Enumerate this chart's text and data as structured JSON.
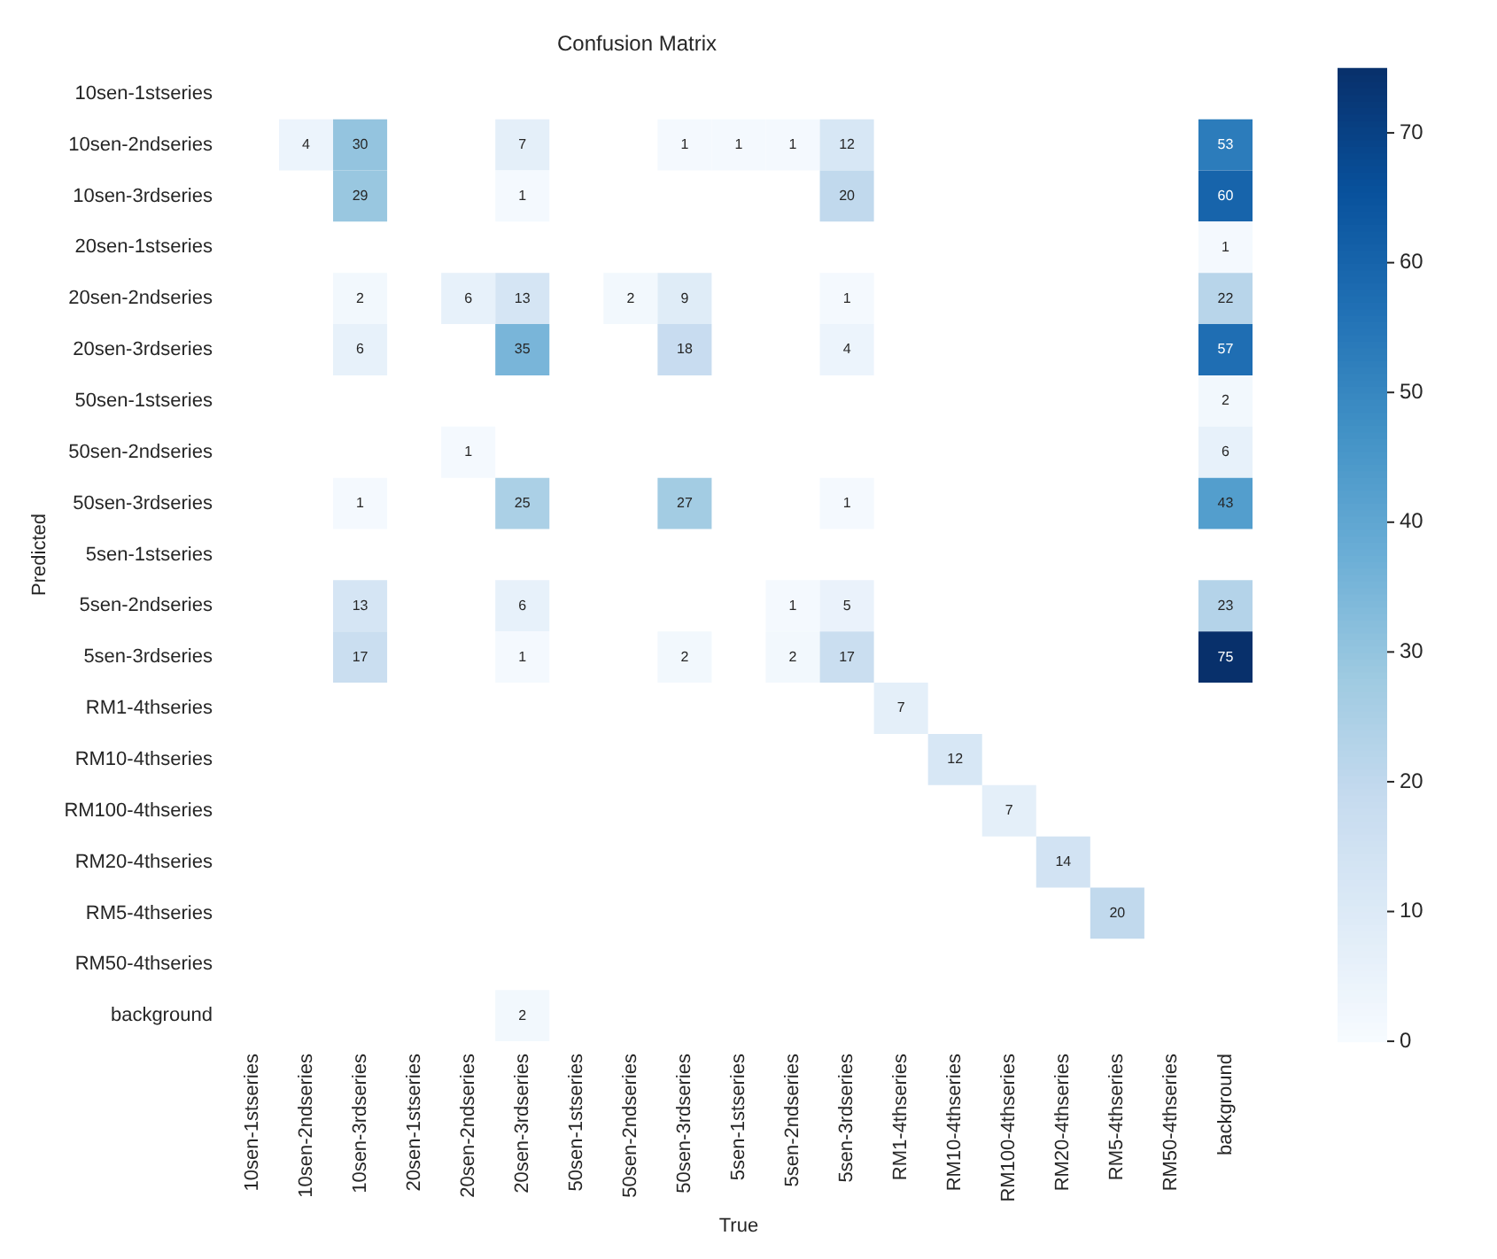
{
  "chart_data": {
    "type": "heatmap",
    "title": "Confusion Matrix",
    "xlabel": "True",
    "ylabel": "Predicted",
    "categories": [
      "10sen-1stseries",
      "10sen-2ndseries",
      "10sen-3rdseries",
      "20sen-1stseries",
      "20sen-2ndseries",
      "20sen-3rdseries",
      "50sen-1stseries",
      "50sen-2ndseries",
      "50sen-3rdseries",
      "5sen-1stseries",
      "5sen-2ndseries",
      "5sen-3rdseries",
      "RM1-4thseries",
      "RM10-4thseries",
      "RM100-4thseries",
      "RM20-4thseries",
      "RM5-4thseries",
      "RM50-4thseries",
      "background"
    ],
    "y_categories": [
      "10sen-1stseries",
      "10sen-2ndseries",
      "10sen-3rdseries",
      "20sen-1stseries",
      "20sen-2ndseries",
      "20sen-3rdseries",
      "50sen-1stseries",
      "50sen-2ndseries",
      "50sen-3rdseries",
      "5sen-1stseries",
      "5sen-2ndseries",
      "5sen-3rdseries",
      "RM1-4thseries",
      "RM10-4thseries",
      "RM100-4thseries",
      "RM20-4thseries",
      "RM5-4thseries",
      "RM50-4thseries",
      "background"
    ],
    "cells": [
      [
        null,
        null,
        null,
        null,
        null,
        null,
        null,
        null,
        null,
        null,
        null,
        null,
        null,
        null,
        null,
        null,
        null,
        null,
        null
      ],
      [
        null,
        4,
        30,
        null,
        null,
        7,
        null,
        null,
        1,
        1,
        1,
        12,
        null,
        null,
        null,
        null,
        null,
        null,
        53
      ],
      [
        null,
        null,
        29,
        null,
        null,
        1,
        null,
        null,
        null,
        null,
        null,
        20,
        null,
        null,
        null,
        null,
        null,
        null,
        60
      ],
      [
        null,
        null,
        null,
        null,
        null,
        null,
        null,
        null,
        null,
        null,
        null,
        null,
        null,
        null,
        null,
        null,
        null,
        null,
        1
      ],
      [
        null,
        null,
        2,
        null,
        6,
        13,
        null,
        2,
        9,
        null,
        null,
        1,
        null,
        null,
        null,
        null,
        null,
        null,
        22
      ],
      [
        null,
        null,
        6,
        null,
        null,
        35,
        null,
        null,
        18,
        null,
        null,
        4,
        null,
        null,
        null,
        null,
        null,
        null,
        57
      ],
      [
        null,
        null,
        null,
        null,
        null,
        null,
        null,
        null,
        null,
        null,
        null,
        null,
        null,
        null,
        null,
        null,
        null,
        null,
        2
      ],
      [
        null,
        null,
        null,
        null,
        1,
        null,
        null,
        null,
        null,
        null,
        null,
        null,
        null,
        null,
        null,
        null,
        null,
        null,
        6
      ],
      [
        null,
        null,
        1,
        null,
        null,
        25,
        null,
        null,
        27,
        null,
        null,
        1,
        null,
        null,
        null,
        null,
        null,
        null,
        43
      ],
      [
        null,
        null,
        null,
        null,
        null,
        null,
        null,
        null,
        null,
        null,
        null,
        null,
        null,
        null,
        null,
        null,
        null,
        null,
        null
      ],
      [
        null,
        null,
        13,
        null,
        null,
        6,
        null,
        null,
        null,
        null,
        1,
        5,
        null,
        null,
        null,
        null,
        null,
        null,
        23
      ],
      [
        null,
        null,
        17,
        null,
        null,
        1,
        null,
        null,
        2,
        null,
        2,
        17,
        null,
        null,
        null,
        null,
        null,
        null,
        75
      ],
      [
        null,
        null,
        null,
        null,
        null,
        null,
        null,
        null,
        null,
        null,
        null,
        null,
        7,
        null,
        null,
        null,
        null,
        null,
        null
      ],
      [
        null,
        null,
        null,
        null,
        null,
        null,
        null,
        null,
        null,
        null,
        null,
        null,
        null,
        12,
        null,
        null,
        null,
        null,
        null
      ],
      [
        null,
        null,
        null,
        null,
        null,
        null,
        null,
        null,
        null,
        null,
        null,
        null,
        null,
        null,
        7,
        null,
        null,
        null,
        null
      ],
      [
        null,
        null,
        null,
        null,
        null,
        null,
        null,
        null,
        null,
        null,
        null,
        null,
        null,
        null,
        null,
        14,
        null,
        null,
        null
      ],
      [
        null,
        null,
        null,
        null,
        null,
        null,
        null,
        null,
        null,
        null,
        null,
        null,
        null,
        null,
        null,
        null,
        20,
        null,
        null
      ],
      [
        null,
        null,
        null,
        null,
        null,
        null,
        null,
        null,
        null,
        null,
        null,
        null,
        null,
        null,
        null,
        null,
        null,
        null,
        null
      ],
      [
        null,
        null,
        null,
        null,
        null,
        2,
        null,
        null,
        null,
        null,
        null,
        null,
        null,
        null,
        null,
        null,
        null,
        null,
        null
      ]
    ],
    "clim": [
      0,
      75
    ],
    "cticks": [
      0,
      10,
      20,
      30,
      40,
      50,
      60,
      70
    ],
    "data_labels": true
  }
}
